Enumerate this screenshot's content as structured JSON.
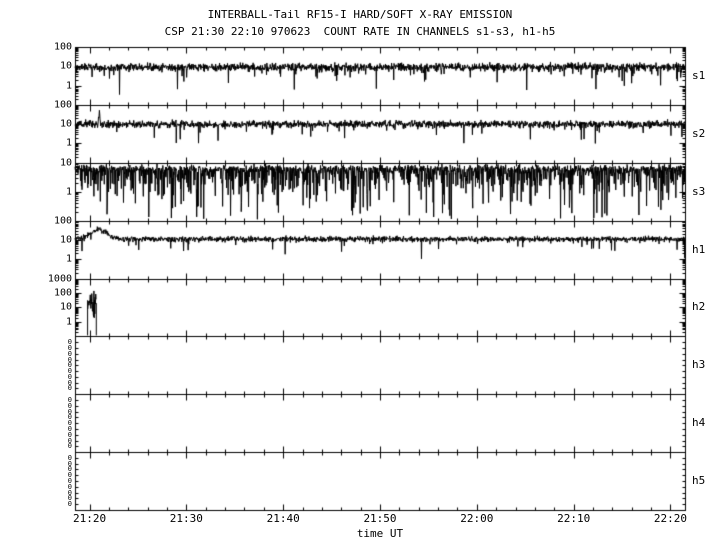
{
  "title": {
    "line1": "INTERBALL-Tail RF15-I HARD/SOFT X-RAY EMISSION",
    "line2": "CSP 21:30 22:10 970623  COUNT RATE IN CHANNELS s1-s3, h1-h5"
  },
  "xaxis": {
    "label": "time UT",
    "tmin_minutes": -1.5,
    "tmax_minutes": 61.5,
    "minor_step_minutes": 2,
    "major_ticks": [
      {
        "t": 0,
        "label": "21:20"
      },
      {
        "t": 10,
        "label": "21:30"
      },
      {
        "t": 20,
        "label": "21:40"
      },
      {
        "t": 30,
        "label": "21:50"
      },
      {
        "t": 40,
        "label": "22:00"
      },
      {
        "t": 50,
        "label": "22:10"
      },
      {
        "t": 60,
        "label": "22:20"
      }
    ]
  },
  "colors": {
    "background": "#ffffff",
    "frame": "#000000",
    "trace": "#000000",
    "text": "#000000"
  },
  "chart_data": {
    "type": "line",
    "title": "INTERBALL-Tail RF15-I HARD/SOFT X-RAY EMISSION",
    "subtitle": "CSP 21:30 22:10 970623  COUNT RATE IN CHANNELS s1-s3, h1-h5",
    "xlabel": "time UT",
    "x_tick_labels": [
      "21:20",
      "21:30",
      "21:40",
      "21:50",
      "22:00",
      "22:10",
      "22:20"
    ],
    "y_scale": "log",
    "legend": "none",
    "panels": [
      {
        "id": "s1",
        "ylim": [
          0.1,
          100
        ],
        "ytick_values": [
          100,
          10,
          1
        ],
        "ytick_labels": [
          "100",
          "10",
          "1"
        ],
        "signal": {
          "kind": "noise",
          "baseline": 9,
          "noise_dex": 0.1,
          "down_spike_prob": 0.05,
          "down_spike_dex": 0.3,
          "seed": 101
        }
      },
      {
        "id": "s2",
        "ylim": [
          0.1,
          100
        ],
        "ytick_values": [
          100,
          10,
          1
        ],
        "ytick_labels": [
          "100",
          "10",
          "1"
        ],
        "signal": {
          "kind": "noise",
          "baseline": 10,
          "noise_dex": 0.09,
          "down_spike_prob": 0.04,
          "down_spike_dex": 0.25,
          "seed": 202,
          "spike": {
            "t": 1.0,
            "amp_dex": 0.7,
            "width_minutes": 0.14
          }
        }
      },
      {
        "id": "s3",
        "ylim": [
          0.1,
          10
        ],
        "ytick_values": [
          10,
          1
        ],
        "ytick_labels": [
          "10",
          "1"
        ],
        "signal": {
          "kind": "noise",
          "baseline": 6,
          "noise_dex": 0.07,
          "down_spike_prob": 0.33,
          "down_spike_dex": 0.4,
          "seed": 303
        }
      },
      {
        "id": "h1",
        "ylim": [
          0.1,
          100
        ],
        "ytick_values": [
          100,
          10,
          1
        ],
        "ytick_labels": [
          "100",
          "10",
          "1"
        ],
        "signal": {
          "kind": "noise",
          "baseline": 11,
          "noise_dex": 0.07,
          "down_spike_prob": 0.03,
          "down_spike_dex": 0.25,
          "seed": 404,
          "bump": {
            "center": 1.0,
            "sigma": 0.8,
            "amp_dex": 0.5
          }
        }
      },
      {
        "id": "h2",
        "ylim": [
          0.1,
          1000
        ],
        "ytick_values": [
          1000,
          100,
          10,
          1
        ],
        "ytick_labels": [
          "1000",
          "100",
          "10",
          "1"
        ],
        "signal": {
          "kind": "burst",
          "window": [
            -0.2,
            0.7
          ],
          "level_dex": 1.5,
          "noise_dex": 0.45,
          "seed": 505
        }
      },
      {
        "id": "h3",
        "ylim": [
          0,
          1
        ],
        "ytick_stack": [
          "0",
          "0",
          "0",
          "0",
          "0",
          "0",
          "0",
          "0",
          "0"
        ],
        "signal": {
          "kind": "none"
        }
      },
      {
        "id": "h4",
        "ylim": [
          0,
          1
        ],
        "ytick_stack": [
          "0",
          "0",
          "0",
          "0",
          "0",
          "0",
          "0",
          "0",
          "0"
        ],
        "signal": {
          "kind": "none"
        }
      },
      {
        "id": "h5",
        "ylim": [
          0,
          1
        ],
        "ytick_stack": [
          "0",
          "0",
          "0",
          "0",
          "0",
          "0",
          "0",
          "0",
          "0"
        ],
        "signal": {
          "kind": "none"
        }
      }
    ]
  }
}
